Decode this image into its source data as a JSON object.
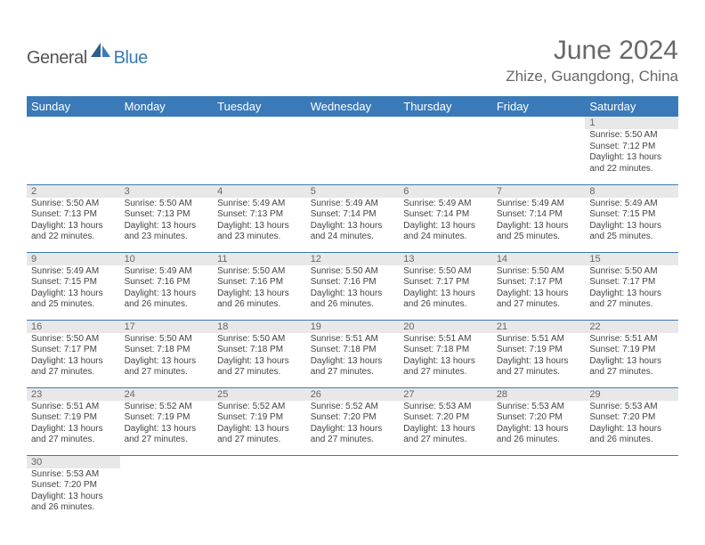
{
  "logo": {
    "general": "General",
    "blue": "Blue"
  },
  "title": "June 2024",
  "location": "Zhize, Guangdong, China",
  "colors": {
    "headerBg": "#3a7ab8",
    "dayBg": "#e8e8e8",
    "text": "#444444"
  },
  "dayHeaders": [
    "Sunday",
    "Monday",
    "Tuesday",
    "Wednesday",
    "Thursday",
    "Friday",
    "Saturday"
  ],
  "grid": {
    "startOffset": 6,
    "days": [
      {
        "n": "1",
        "sr": "5:50 AM",
        "ss": "7:12 PM",
        "dl": "13 hours and 22 minutes."
      },
      {
        "n": "2",
        "sr": "5:50 AM",
        "ss": "7:13 PM",
        "dl": "13 hours and 22 minutes."
      },
      {
        "n": "3",
        "sr": "5:50 AM",
        "ss": "7:13 PM",
        "dl": "13 hours and 23 minutes."
      },
      {
        "n": "4",
        "sr": "5:49 AM",
        "ss": "7:13 PM",
        "dl": "13 hours and 23 minutes."
      },
      {
        "n": "5",
        "sr": "5:49 AM",
        "ss": "7:14 PM",
        "dl": "13 hours and 24 minutes."
      },
      {
        "n": "6",
        "sr": "5:49 AM",
        "ss": "7:14 PM",
        "dl": "13 hours and 24 minutes."
      },
      {
        "n": "7",
        "sr": "5:49 AM",
        "ss": "7:14 PM",
        "dl": "13 hours and 25 minutes."
      },
      {
        "n": "8",
        "sr": "5:49 AM",
        "ss": "7:15 PM",
        "dl": "13 hours and 25 minutes."
      },
      {
        "n": "9",
        "sr": "5:49 AM",
        "ss": "7:15 PM",
        "dl": "13 hours and 25 minutes."
      },
      {
        "n": "10",
        "sr": "5:49 AM",
        "ss": "7:16 PM",
        "dl": "13 hours and 26 minutes."
      },
      {
        "n": "11",
        "sr": "5:50 AM",
        "ss": "7:16 PM",
        "dl": "13 hours and 26 minutes."
      },
      {
        "n": "12",
        "sr": "5:50 AM",
        "ss": "7:16 PM",
        "dl": "13 hours and 26 minutes."
      },
      {
        "n": "13",
        "sr": "5:50 AM",
        "ss": "7:17 PM",
        "dl": "13 hours and 26 minutes."
      },
      {
        "n": "14",
        "sr": "5:50 AM",
        "ss": "7:17 PM",
        "dl": "13 hours and 27 minutes."
      },
      {
        "n": "15",
        "sr": "5:50 AM",
        "ss": "7:17 PM",
        "dl": "13 hours and 27 minutes."
      },
      {
        "n": "16",
        "sr": "5:50 AM",
        "ss": "7:17 PM",
        "dl": "13 hours and 27 minutes."
      },
      {
        "n": "17",
        "sr": "5:50 AM",
        "ss": "7:18 PM",
        "dl": "13 hours and 27 minutes."
      },
      {
        "n": "18",
        "sr": "5:50 AM",
        "ss": "7:18 PM",
        "dl": "13 hours and 27 minutes."
      },
      {
        "n": "19",
        "sr": "5:51 AM",
        "ss": "7:18 PM",
        "dl": "13 hours and 27 minutes."
      },
      {
        "n": "20",
        "sr": "5:51 AM",
        "ss": "7:18 PM",
        "dl": "13 hours and 27 minutes."
      },
      {
        "n": "21",
        "sr": "5:51 AM",
        "ss": "7:19 PM",
        "dl": "13 hours and 27 minutes."
      },
      {
        "n": "22",
        "sr": "5:51 AM",
        "ss": "7:19 PM",
        "dl": "13 hours and 27 minutes."
      },
      {
        "n": "23",
        "sr": "5:51 AM",
        "ss": "7:19 PM",
        "dl": "13 hours and 27 minutes."
      },
      {
        "n": "24",
        "sr": "5:52 AM",
        "ss": "7:19 PM",
        "dl": "13 hours and 27 minutes."
      },
      {
        "n": "25",
        "sr": "5:52 AM",
        "ss": "7:19 PM",
        "dl": "13 hours and 27 minutes."
      },
      {
        "n": "26",
        "sr": "5:52 AM",
        "ss": "7:20 PM",
        "dl": "13 hours and 27 minutes."
      },
      {
        "n": "27",
        "sr": "5:53 AM",
        "ss": "7:20 PM",
        "dl": "13 hours and 27 minutes."
      },
      {
        "n": "28",
        "sr": "5:53 AM",
        "ss": "7:20 PM",
        "dl": "13 hours and 26 minutes."
      },
      {
        "n": "29",
        "sr": "5:53 AM",
        "ss": "7:20 PM",
        "dl": "13 hours and 26 minutes."
      },
      {
        "n": "30",
        "sr": "5:53 AM",
        "ss": "7:20 PM",
        "dl": "13 hours and 26 minutes."
      }
    ]
  },
  "labels": {
    "sunrise": "Sunrise:",
    "sunset": "Sunset:",
    "daylight": "Daylight:"
  }
}
